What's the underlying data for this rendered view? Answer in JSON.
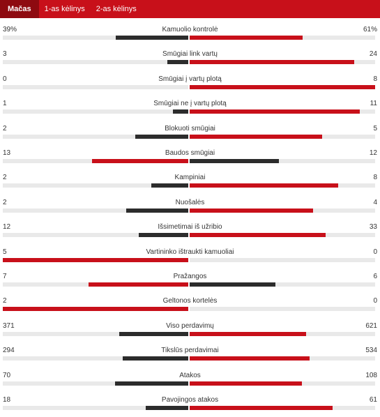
{
  "tabs": [
    {
      "label": "Mačas",
      "active": true
    },
    {
      "label": "1-as kėlinys",
      "active": false
    },
    {
      "label": "2-as kėlinys",
      "active": false
    }
  ],
  "colors": {
    "accent": "#c8101a",
    "accent_dark": "#8e0a10",
    "bar_dark": "#2c2c2c",
    "track": "#e9e9e9"
  },
  "stats": [
    {
      "name": "Kamuolio kontrolė",
      "home": "39%",
      "away": "61%",
      "home_value": 39,
      "away_value": 61
    },
    {
      "name": "Smūgiai link vartų",
      "home": "3",
      "away": "24",
      "home_value": 3,
      "away_value": 24
    },
    {
      "name": "Smūgiai į vartų plotą",
      "home": "0",
      "away": "8",
      "home_value": 0,
      "away_value": 8
    },
    {
      "name": "Smūgiai ne į vartų plotą",
      "home": "1",
      "away": "11",
      "home_value": 1,
      "away_value": 11
    },
    {
      "name": "Blokuoti smūgiai",
      "home": "2",
      "away": "5",
      "home_value": 2,
      "away_value": 5
    },
    {
      "name": "Baudos smūgiai",
      "home": "13",
      "away": "12",
      "home_value": 13,
      "away_value": 12
    },
    {
      "name": "Kampiniai",
      "home": "2",
      "away": "8",
      "home_value": 2,
      "away_value": 8
    },
    {
      "name": "Nuošalės",
      "home": "2",
      "away": "4",
      "home_value": 2,
      "away_value": 4
    },
    {
      "name": "Išsimetimai iš užribio",
      "home": "12",
      "away": "33",
      "home_value": 12,
      "away_value": 33
    },
    {
      "name": "Vartininko ištraukti kamuoliai",
      "home": "5",
      "away": "0",
      "home_value": 5,
      "away_value": 0
    },
    {
      "name": "Pražangos",
      "home": "7",
      "away": "6",
      "home_value": 7,
      "away_value": 6
    },
    {
      "name": "Geltonos kortelės",
      "home": "2",
      "away": "0",
      "home_value": 2,
      "away_value": 0
    },
    {
      "name": "Viso perdavimų",
      "home": "371",
      "away": "621",
      "home_value": 371,
      "away_value": 621
    },
    {
      "name": "Tikslūs perdavimai",
      "home": "294",
      "away": "534",
      "home_value": 294,
      "away_value": 534
    },
    {
      "name": "Atakos",
      "home": "70",
      "away": "108",
      "home_value": 70,
      "away_value": 108
    },
    {
      "name": "Pavojingos atakos",
      "home": "18",
      "away": "61",
      "home_value": 18,
      "away_value": 61
    }
  ]
}
